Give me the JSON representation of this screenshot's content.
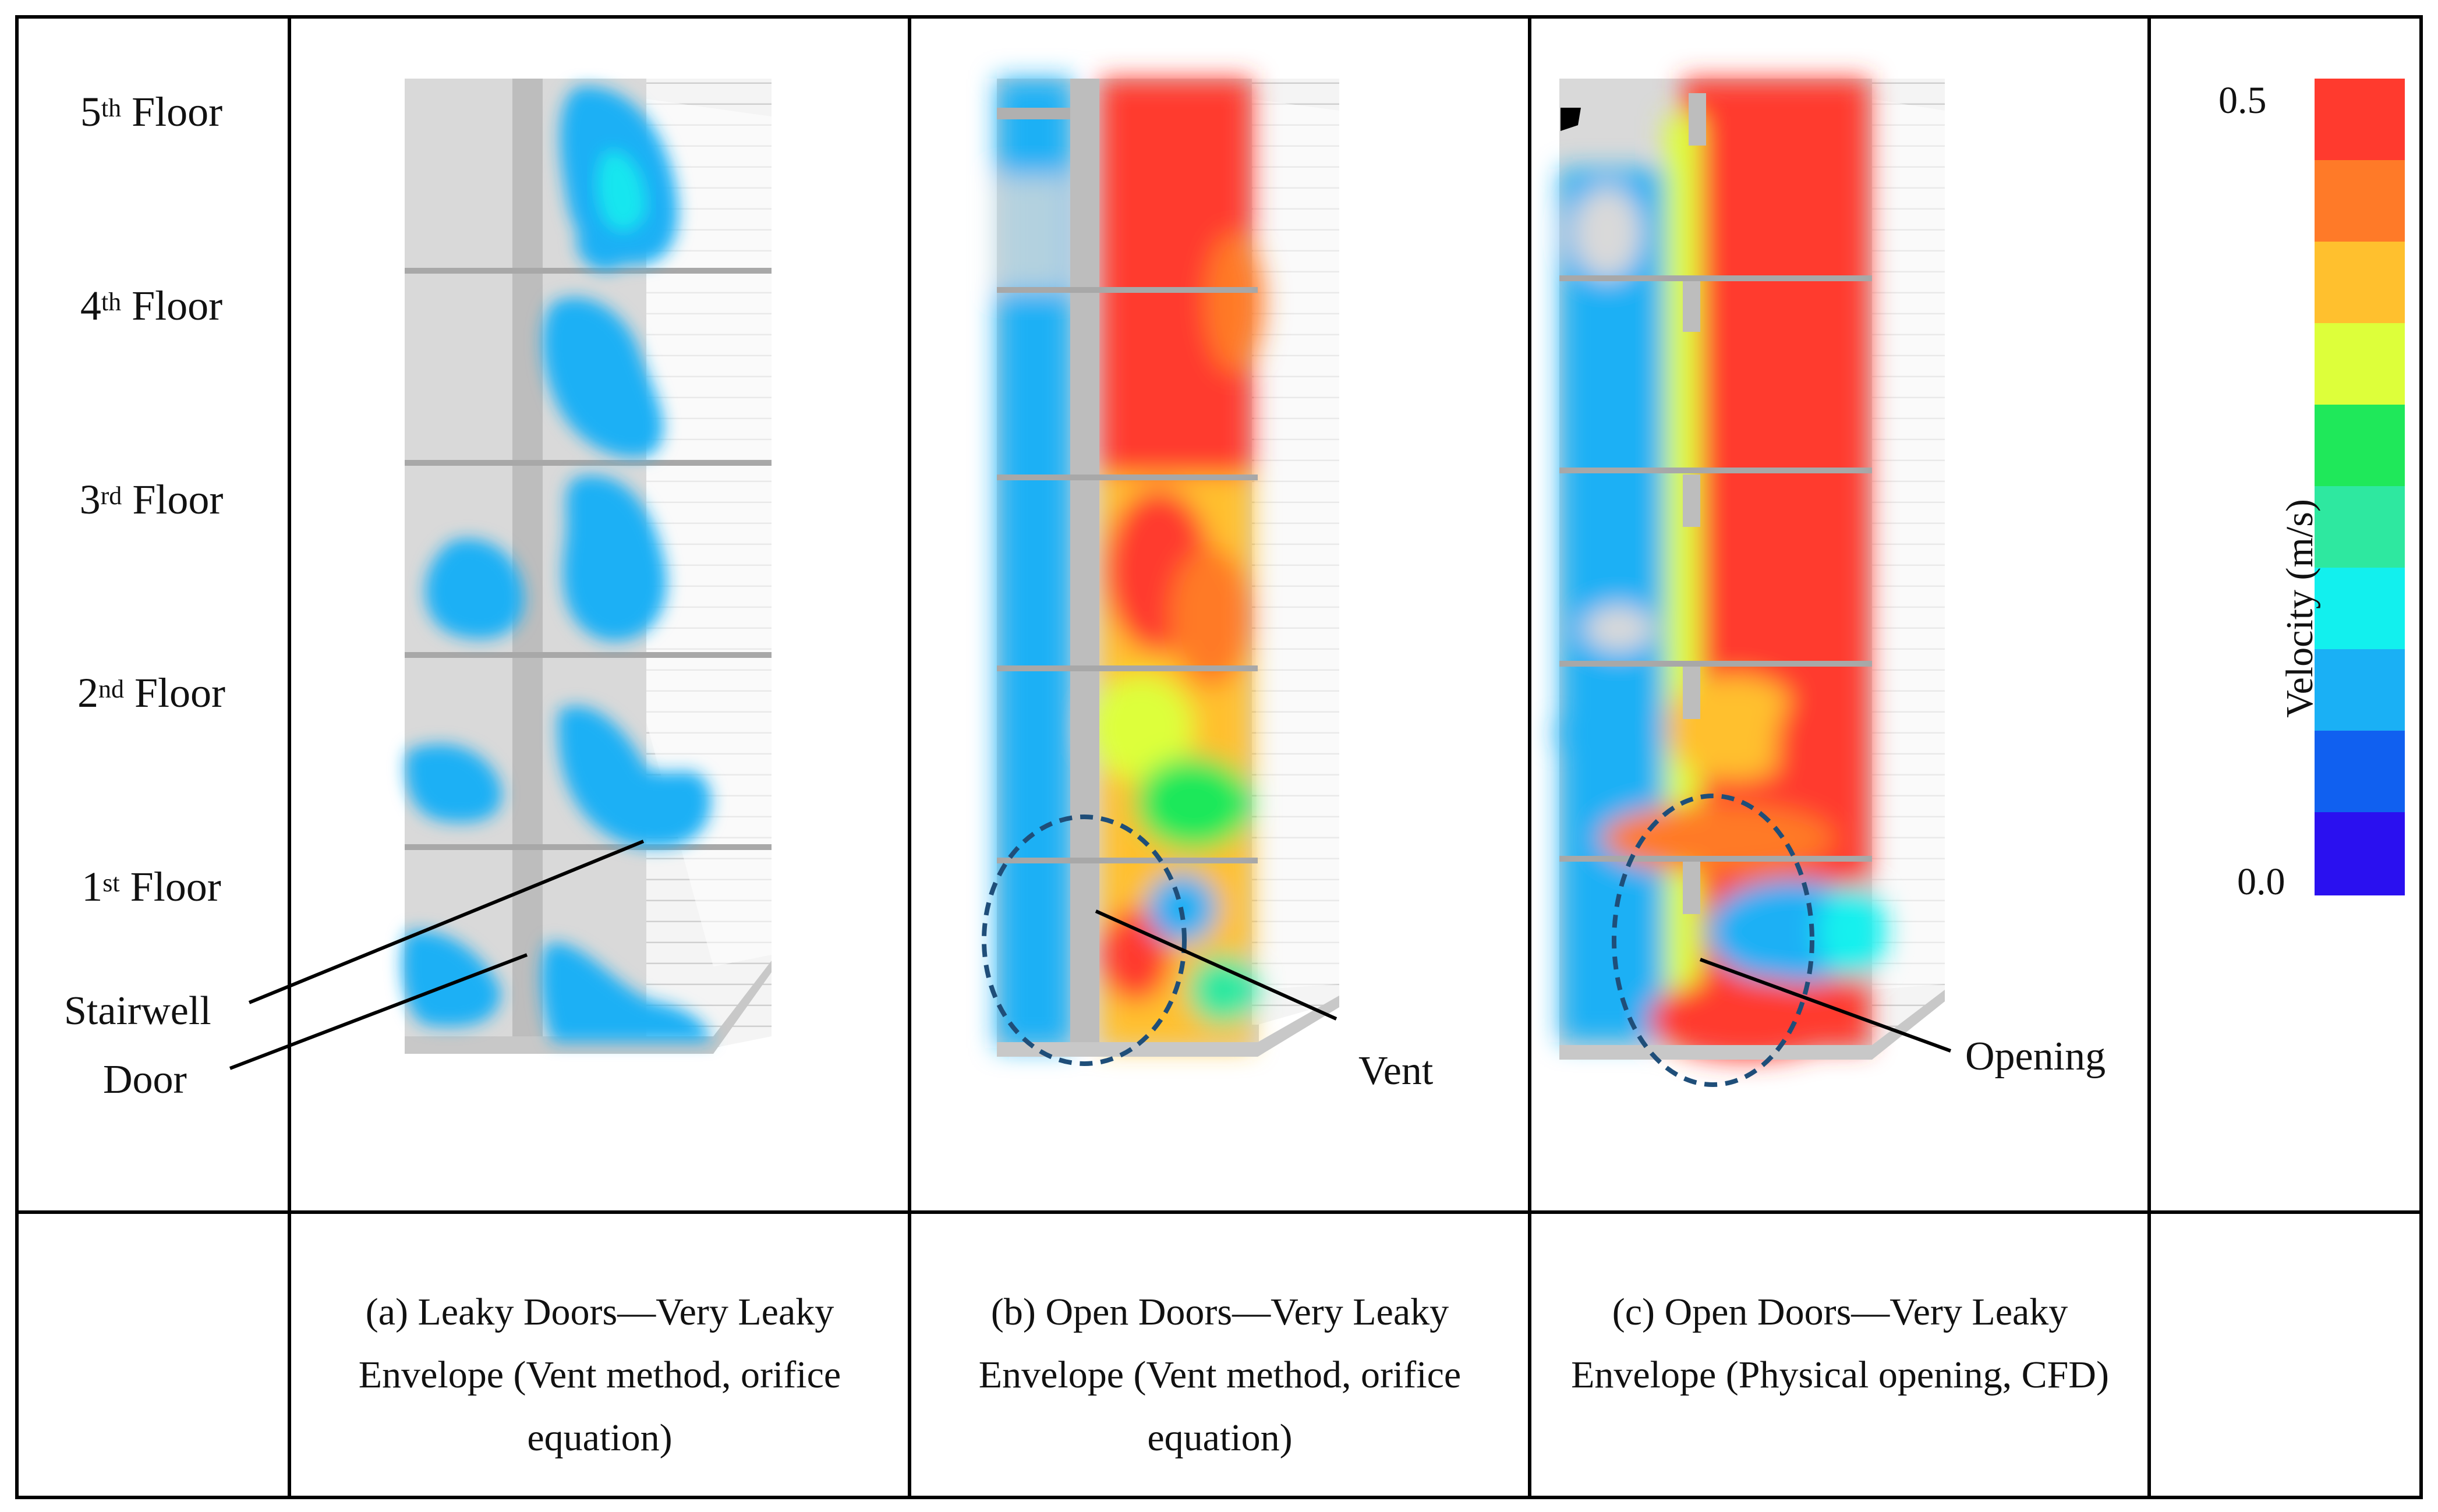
{
  "floors": {
    "f5": {
      "num": "5",
      "sup": "th",
      "word": "Floor"
    },
    "f4": {
      "num": "4",
      "sup": "th",
      "word": "Floor"
    },
    "f3": {
      "num": "3",
      "sup": "rd",
      "word": "Floor"
    },
    "f2": {
      "num": "2",
      "sup": "nd",
      "word": "Floor"
    },
    "f1": {
      "num": "1",
      "sup": "st",
      "word": "Floor"
    }
  },
  "annotations": {
    "stairwell": "Stairwell",
    "door": "Door",
    "vent": "Vent",
    "opening": "Opening"
  },
  "captions": {
    "a": "(a) Leaky Doors—Very Leaky Envelope (Vent method, orifice equation)",
    "b": "(b) Open Doors—Very Leaky Envelope (Vent method, orifice equation)",
    "c": "(c) Open Doors—Very Leaky Envelope (Physical opening, CFD)"
  },
  "legend": {
    "title": "Velocity (m/s)",
    "max_label": "0.5",
    "min_label": "0.0",
    "colors": [
      "#ff3a2e",
      "#ff7a28",
      "#ffc02e",
      "#ddff3a",
      "#1fe85a",
      "#2ee8a0",
      "#12f0ee",
      "#1ab0f5",
      "#1060f0",
      "#2a10f0"
    ]
  },
  "colors": {
    "frame": "#000000",
    "wall": "#d8d8d8",
    "ellipse": "#1f4e79"
  }
}
